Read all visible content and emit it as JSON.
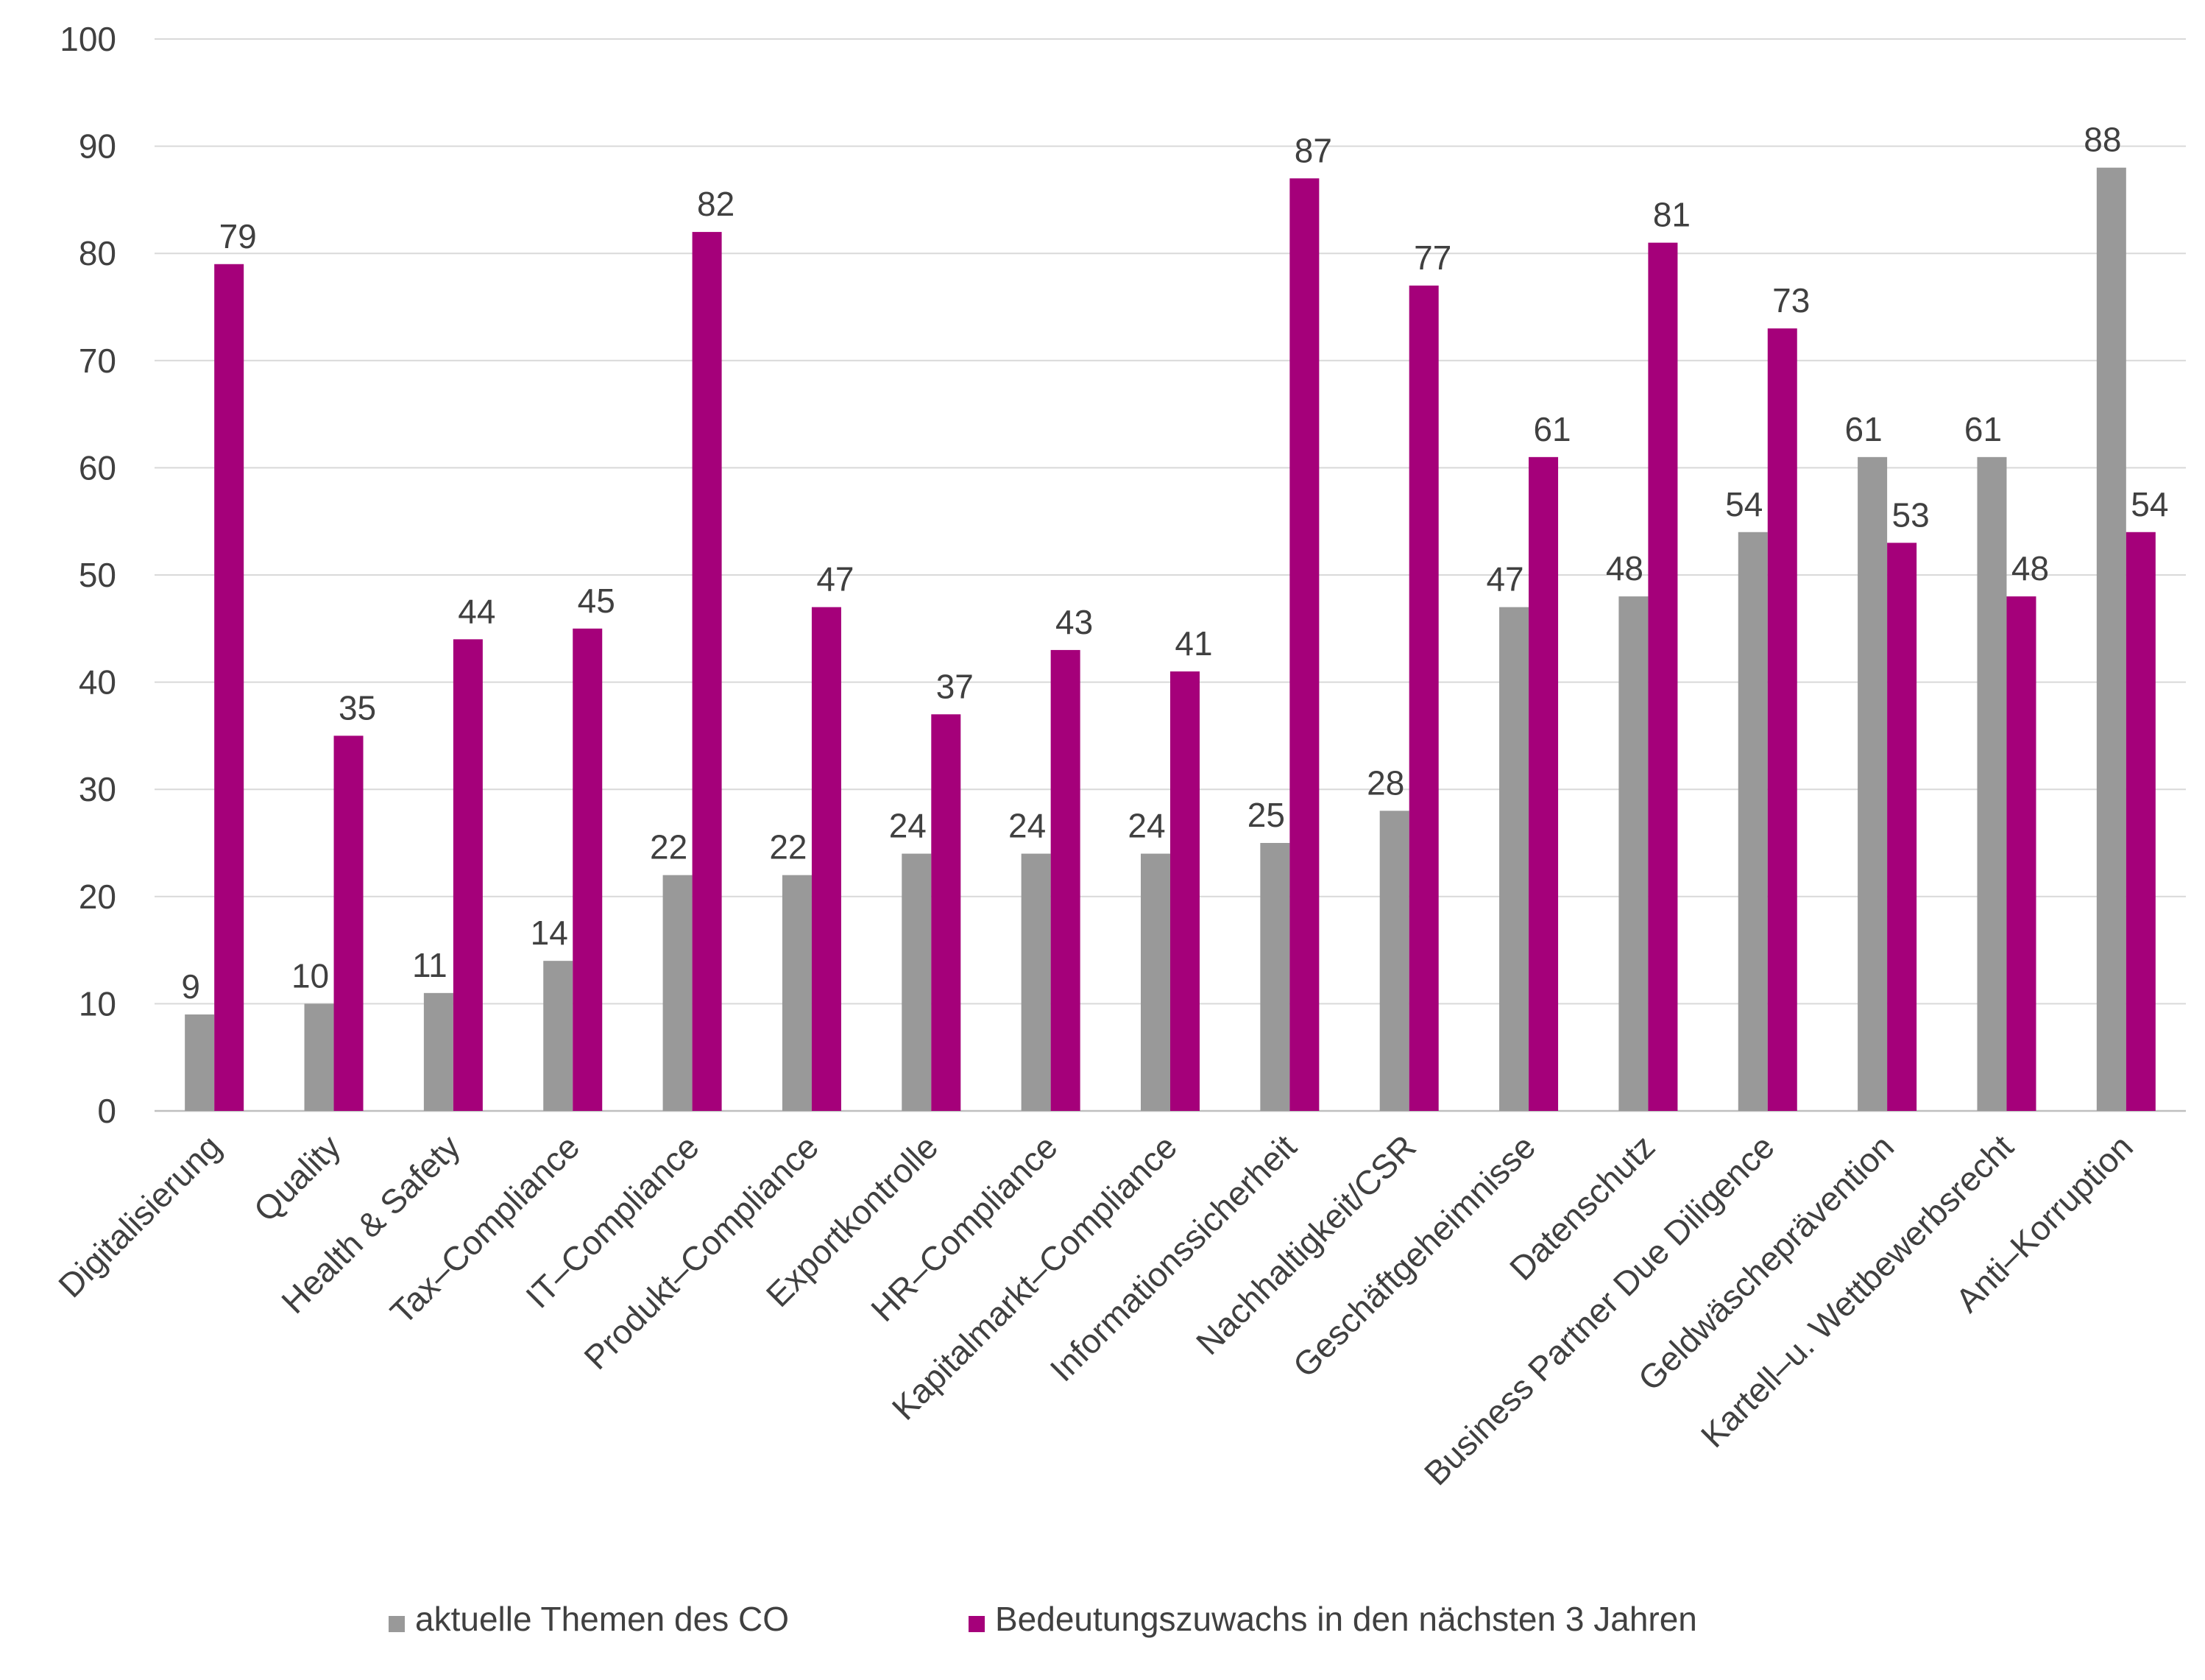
{
  "chart_data": {
    "type": "bar",
    "title": "",
    "xlabel": "",
    "ylabel": "",
    "ylim": [
      0,
      100
    ],
    "yticks": [
      0,
      10,
      20,
      30,
      40,
      50,
      60,
      70,
      80,
      90,
      100
    ],
    "grid": true,
    "legend_position": "bottom",
    "categories": [
      "Digitalisierung",
      "Quality",
      "Health & Safety",
      "Tax–Compliance",
      "IT–Compliance",
      "Produkt–Compliance",
      "Exportkontrolle",
      "HR–Compliance",
      "Kapitalmarkt–Compliance",
      "Informationssicherheit",
      "Nachhaltigkeit/CSR",
      "Geschäftgeheimnisse",
      "Datenschutz",
      "Business Partner Due Diligence",
      "Geldwäscheprävention",
      "Kartell–u. Wettbewerbsrecht",
      "Anti–Korruption"
    ],
    "series": [
      {
        "name": "aktuelle Themen des CO",
        "color": "#999999",
        "values": [
          9,
          10,
          11,
          14,
          22,
          22,
          24,
          24,
          24,
          25,
          28,
          47,
          48,
          54,
          61,
          61,
          88
        ]
      },
      {
        "name": "Bedeutungszuwachs in den nächsten 3 Jahren",
        "color": "#A5007A",
        "values": [
          79,
          35,
          44,
          45,
          82,
          47,
          37,
          43,
          41,
          87,
          77,
          61,
          81,
          73,
          53,
          48,
          54
        ]
      }
    ]
  }
}
